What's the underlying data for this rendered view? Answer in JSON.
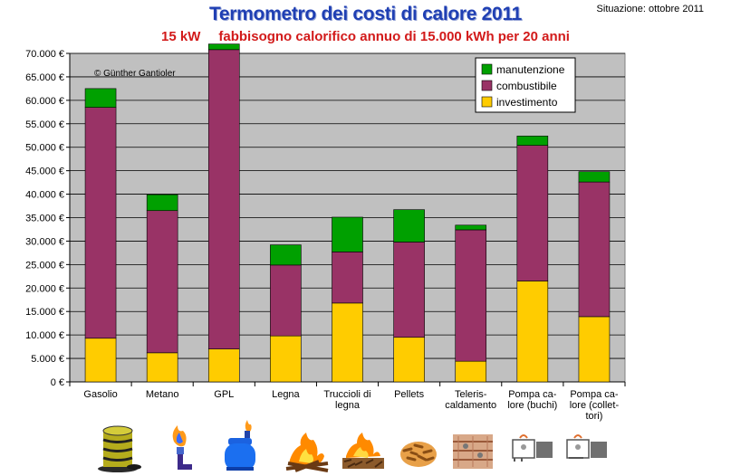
{
  "header": {
    "title": "Termometro dei costi di calore 2011",
    "subtitle_power": "15 kW",
    "subtitle_text": "fabbisogno calorifico annuo di 15.000 kWh per 20 anni",
    "situation": "Situazione: ottobre 2011"
  },
  "colors": {
    "investimento": "#ffcc00",
    "combustibile": "#993366",
    "manutenzione": "#00a000",
    "plot_bg": "#c0c0c0",
    "title": "#1f3fb3",
    "subtitle": "#d21a1a"
  },
  "chart_data": {
    "type": "bar",
    "stacked": true,
    "copyright": "© Günther Gantioler",
    "categories": [
      [
        "Gasolio"
      ],
      [
        "Metano"
      ],
      [
        "GPL"
      ],
      [
        "Legna"
      ],
      [
        "Truccioli di",
        "legna"
      ],
      [
        "Pellets"
      ],
      [
        "Teleris-",
        "caldamento"
      ],
      [
        "Pompa ca-",
        "lore (buchi)"
      ],
      [
        "Pompa ca-",
        "lore (collet-",
        "tori)"
      ]
    ],
    "series": [
      {
        "name": "investimento",
        "values": [
          9300,
          6200,
          7000,
          9800,
          16800,
          9500,
          4400,
          21500,
          13900
        ]
      },
      {
        "name": "combustibile",
        "values": [
          49200,
          30300,
          63800,
          15100,
          10900,
          20300,
          28000,
          28900,
          28700
        ]
      },
      {
        "name": "manutenzione",
        "values": [
          4000,
          3400,
          1200,
          4300,
          7400,
          6900,
          1000,
          2000,
          2200
        ]
      }
    ],
    "legend_order": [
      "manutenzione",
      "combustibile",
      "investimento"
    ],
    "legend_position": "top-right",
    "ylim": [
      0,
      70000
    ],
    "yticks": [
      "0 €",
      "5.000 €",
      "10.000 €",
      "15.000 €",
      "20.000 €",
      "25.000 €",
      "30.000 €",
      "35.000 €",
      "40.000 €",
      "45.000 €",
      "50.000 €",
      "55.000 €",
      "60.000 €",
      "65.000 €",
      "70.000 €"
    ],
    "grid": true
  },
  "icons": [
    "oil-barrel-icon",
    "gas-flame-icon",
    "lpg-tank-icon",
    "campfire-icon",
    "wood-chips-fire-icon",
    "pellets-icon",
    "district-heating-icon",
    "heat-pump-borehole-icon",
    "heat-pump-collector-icon"
  ]
}
